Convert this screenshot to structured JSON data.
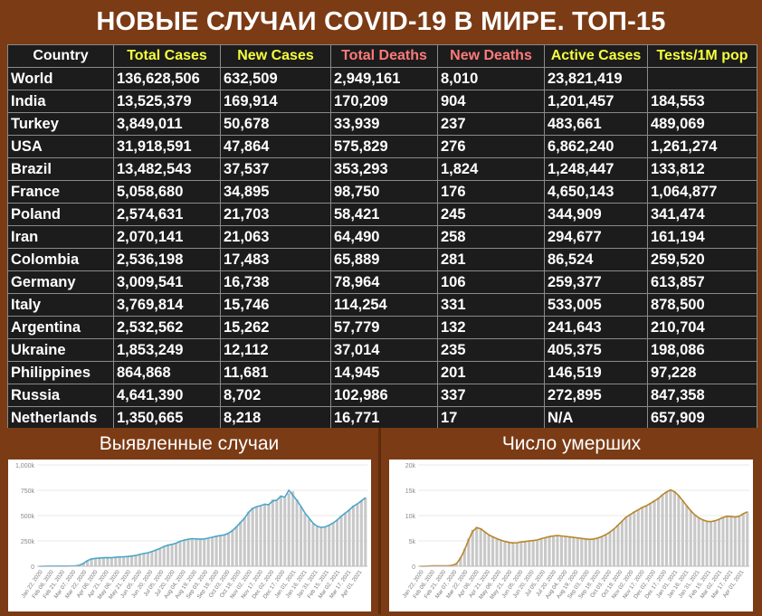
{
  "title": "НОВЫЕ СЛУЧАИ COVID-19 В МИРЕ. ТОП-15",
  "colors": {
    "background": "#7b3b15",
    "table_bg": "#1c1c1c",
    "yellow_header": "#f6ff3c",
    "red_header": "#ff7a7a",
    "cases_line": "#4aa6c9",
    "deaths_line": "#b8862a",
    "bars": "#c8c8c8"
  },
  "table": {
    "headers": [
      "Country",
      "Total Cases",
      "New Cases",
      "Total Deaths",
      "New Deaths",
      "Active Cases",
      "Tests/1M pop"
    ],
    "rows": [
      [
        "World",
        "136,628,506",
        "632,509",
        "2,949,161",
        "8,010",
        "23,821,419",
        ""
      ],
      [
        "India",
        "13,525,379",
        "169,914",
        "170,209",
        "904",
        "1,201,457",
        "184,553"
      ],
      [
        "Turkey",
        "3,849,011",
        "50,678",
        "33,939",
        "237",
        "483,661",
        "489,069"
      ],
      [
        "USA",
        "31,918,591",
        "47,864",
        "575,829",
        "276",
        "6,862,240",
        "1,261,274"
      ],
      [
        "Brazil",
        "13,482,543",
        "37,537",
        "353,293",
        "1,824",
        "1,248,447",
        "133,812"
      ],
      [
        "France",
        "5,058,680",
        "34,895",
        "98,750",
        "176",
        "4,650,143",
        "1,064,877"
      ],
      [
        "Poland",
        "2,574,631",
        "21,703",
        "58,421",
        "245",
        "344,909",
        "341,474"
      ],
      [
        "Iran",
        "2,070,141",
        "21,063",
        "64,490",
        "258",
        "294,677",
        "161,194"
      ],
      [
        "Colombia",
        "2,536,198",
        "17,483",
        "65,889",
        "281",
        "86,524",
        "259,520"
      ],
      [
        "Germany",
        "3,009,541",
        "16,738",
        "78,964",
        "106",
        "259,377",
        "613,857"
      ],
      [
        "Italy",
        "3,769,814",
        "15,746",
        "114,254",
        "331",
        "533,005",
        "878,500"
      ],
      [
        "Argentina",
        "2,532,562",
        "15,262",
        "57,779",
        "132",
        "241,643",
        "210,704"
      ],
      [
        "Ukraine",
        "1,853,249",
        "12,112",
        "37,014",
        "235",
        "405,375",
        "198,086"
      ],
      [
        "Philippines",
        "864,868",
        "11,681",
        "14,945",
        "201",
        "146,519",
        "97,228"
      ],
      [
        "Russia",
        "4,641,390",
        "8,702",
        "102,986",
        "337",
        "272,895",
        "847,358"
      ],
      [
        "Netherlands",
        "1,350,665",
        "8,218",
        "16,771",
        "17",
        "N/A",
        "657,909"
      ]
    ]
  },
  "chart_data": [
    {
      "type": "bar",
      "title": "Выявленные случаи",
      "y_ticks": [
        "0",
        "250k",
        "500k",
        "750k",
        "1,000k"
      ],
      "ylim": [
        0,
        1000000
      ],
      "x_tick_labels": [
        "Jan 22, 2020",
        "Feb 06, 2020",
        "Feb 21, 2020",
        "Mar 07, 2020",
        "Mar 22, 2020",
        "Apr 06, 2020",
        "Apr 21, 2020",
        "May 06, 2020",
        "May 21, 2020",
        "Jun 05, 2020",
        "Jun 20, 2020",
        "Jul 05, 2020",
        "Jul 20, 2020",
        "Aug 04, 2020",
        "Aug 19, 2020",
        "Sep 03, 2020",
        "Sep 18, 2020",
        "Oct 03, 2020",
        "Oct 18, 2020",
        "Nov 02, 2020",
        "Nov 17, 2020",
        "Dec 02, 2020",
        "Dec 17, 2020",
        "Jan 01, 2021",
        "Jan 16, 2021",
        "Jan 31, 2021",
        "Feb 15, 2021",
        "Mar 02, 2021",
        "Mar 17, 2021",
        "Apr 01, 2021"
      ],
      "series": [
        {
          "kind": "bars_daily",
          "values": [
            0,
            0,
            2000,
            3000,
            2000,
            3000,
            2000,
            1000,
            3000,
            4000,
            12000,
            30000,
            60000,
            76000,
            80000,
            82000,
            85000,
            88000,
            82000,
            90000,
            95000,
            92000,
            98000,
            102000,
            108000,
            120000,
            130000,
            135000,
            148000,
            165000,
            180000,
            200000,
            212000,
            218000,
            230000,
            250000,
            262000,
            268000,
            275000,
            270000,
            265000,
            272000,
            280000,
            290000,
            300000,
            305000,
            312000,
            330000,
            360000,
            395000,
            440000,
            480000,
            540000,
            580000,
            590000,
            600000,
            620000,
            610000,
            660000,
            650000,
            700000,
            680000,
            720000,
            740000,
            660000,
            590000,
            520000,
            470000,
            420000,
            390000,
            380000,
            390000,
            410000,
            430000,
            460000,
            500000,
            530000,
            560000,
            600000,
            620000,
            650000,
            680000
          ]
        },
        {
          "kind": "line_7day_avg",
          "values": [
            0,
            0,
            1500,
            2000,
            2000,
            2500,
            2000,
            1500,
            2500,
            3500,
            10000,
            28000,
            55000,
            72000,
            78000,
            81000,
            84000,
            86000,
            84000,
            88000,
            92000,
            93000,
            96000,
            101000,
            106000,
            117000,
            126000,
            133000,
            145000,
            160000,
            176000,
            195000,
            208000,
            216000,
            228000,
            246000,
            258000,
            266000,
            272000,
            270000,
            267000,
            270000,
            278000,
            287000,
            296000,
            303000,
            310000,
            326000,
            352000,
            388000,
            432000,
            474000,
            532000,
            570000,
            588000,
            598000,
            612000,
            608000,
            645000,
            652000,
            690000,
            682000,
            750000,
            700000,
            650000,
            590000,
            525000,
            475000,
            425000,
            395000,
            383000,
            388000,
            405000,
            428000,
            456000,
            495000,
            525000,
            556000,
            592000,
            616000,
            645000,
            676000
          ]
        }
      ]
    },
    {
      "type": "bar",
      "title": "Число умерших",
      "y_ticks": [
        "0",
        "5k",
        "10k",
        "15k",
        "20k"
      ],
      "ylim": [
        0,
        20000
      ],
      "x_tick_labels": [
        "Jan 22, 2020",
        "Feb 06, 2020",
        "Feb 21, 2020",
        "Mar 07, 2020",
        "Mar 22, 2020",
        "Apr 06, 2020",
        "Apr 21, 2020",
        "May 06, 2020",
        "May 21, 2020",
        "Jun 05, 2020",
        "Jun 20, 2020",
        "Jul 05, 2020",
        "Jul 20, 2020",
        "Aug 04, 2020",
        "Aug 19, 2020",
        "Sep 03, 2020",
        "Sep 18, 2020",
        "Oct 03, 2020",
        "Oct 18, 2020",
        "Nov 02, 2020",
        "Nov 17, 2020",
        "Dec 02, 2020",
        "Dec 17, 2020",
        "Jan 01, 2021",
        "Jan 16, 2021",
        "Jan 31, 2021",
        "Feb 15, 2021",
        "Mar 02, 2021",
        "Mar 17, 2021",
        "Apr 01, 2021"
      ],
      "series": [
        {
          "kind": "bars_daily",
          "values": [
            0,
            0,
            50,
            80,
            70,
            90,
            100,
            120,
            200,
            600,
            1800,
            3500,
            5500,
            7200,
            7800,
            7500,
            6800,
            6200,
            5800,
            5500,
            5200,
            4900,
            4700,
            4600,
            4700,
            4800,
            4900,
            5000,
            5100,
            5200,
            5500,
            5700,
            5900,
            6000,
            6100,
            6000,
            5900,
            5800,
            5700,
            5600,
            5500,
            5400,
            5300,
            5400,
            5600,
            5900,
            6300,
            6800,
            7400,
            8200,
            9000,
            9800,
            10300,
            10800,
            11200,
            11700,
            12000,
            12500,
            13000,
            13500,
            14200,
            14800,
            15200,
            14800,
            14000,
            13000,
            12000,
            11000,
            10200,
            9600,
            9200,
            8900,
            8800,
            9000,
            9300,
            9700,
            9900,
            9800,
            9700,
            9900,
            10400,
            10800
          ]
        },
        {
          "kind": "line_7day_avg",
          "values": [
            0,
            0,
            40,
            70,
            70,
            85,
            95,
            115,
            180,
            520,
            1600,
            3200,
            5200,
            6900,
            7600,
            7400,
            6800,
            6200,
            5800,
            5450,
            5150,
            4900,
            4700,
            4600,
            4650,
            4780,
            4880,
            4980,
            5080,
            5180,
            5450,
            5650,
            5850,
            5980,
            6050,
            5990,
            5890,
            5790,
            5690,
            5590,
            5490,
            5390,
            5310,
            5390,
            5580,
            5870,
            6250,
            6750,
            7350,
            8100,
            8900,
            9700,
            10200,
            10700,
            11150,
            11600,
            11950,
            12400,
            12900,
            13400,
            14100,
            14650,
            15050,
            14700,
            13950,
            12950,
            11950,
            10950,
            10150,
            9550,
            9150,
            8880,
            8800,
            8980,
            9270,
            9650,
            9880,
            9800,
            9720,
            9880,
            10350,
            10750
          ]
        }
      ]
    }
  ]
}
